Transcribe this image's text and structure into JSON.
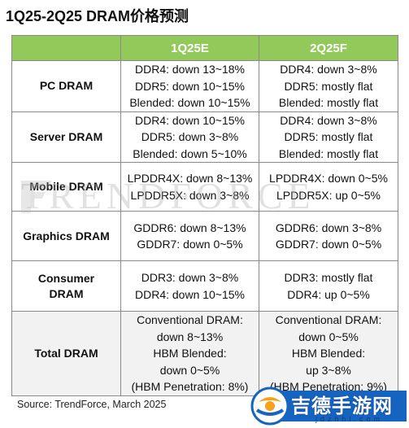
{
  "title": "1Q25-2Q25 DRAM价格预测",
  "columns": [
    "1Q25E",
    "2Q25F"
  ],
  "rows": [
    {
      "category": [
        "PC DRAM"
      ],
      "q1": [
        "DDR4: down 13~18%",
        "DDR5: down 10~15%",
        "Blended: down 10~15%"
      ],
      "q2": [
        "DDR4: down 3~8%",
        "DDR5: mostly flat",
        "Blended: mostly flat"
      ]
    },
    {
      "category": [
        "Server DRAM"
      ],
      "q1": [
        "DDR4: down 10~15%",
        "DDR5: down 3~8%",
        "Blended: down 5~10%"
      ],
      "q2": [
        "DDR4: down 3~8%",
        "DDR5: mostly flat",
        "Blended: mostly flat"
      ]
    },
    {
      "category": [
        "Mobile DRAM"
      ],
      "q1": [
        "LPDDR4X: down 8~13%",
        "LPDDR5X: down 3~8%"
      ],
      "q2": [
        "LPDDR4X: down 0~5%",
        "LPDDR5X: up 0~5%"
      ]
    },
    {
      "category": [
        "Graphics DRAM"
      ],
      "q1": [
        "GDDR6: down 8~13%",
        "GDDR7: down 0~5%"
      ],
      "q2": [
        "GDDR6: down 3~8%",
        "GDDR7: down 0~5%"
      ]
    },
    {
      "category": [
        "Consumer",
        "DRAM"
      ],
      "q1": [
        "DDR3: down 3~8%",
        "DDR4: down 10~15%"
      ],
      "q2": [
        "DDR3: mostly flat",
        "DDR4: up 0~5%"
      ]
    },
    {
      "category": [
        "Total DRAM"
      ],
      "q1": [
        "Conventional DRAM:",
        "down 8~13%",
        "HBM Blended:",
        "down 0~5%",
        "(HBM Penetration: 8%)"
      ],
      "q2": [
        "Conventional DRAM:",
        "down 0~5%",
        "HBM Blended:",
        "up 3~8%",
        "(HBM Penetration: 9%)"
      ]
    }
  ],
  "watermark": "TRENDFORCE",
  "source": "Source: TrendForce, March 2025",
  "badge": {
    "text": "吉德手游网",
    "url": "jdzhhl.com"
  },
  "colors": {
    "header_bg": "#92c95a",
    "header_text": "#ffffff",
    "border": "#8a8a8a",
    "badge_blue": "#1565c0",
    "badge_orange": "#f5a21a"
  }
}
